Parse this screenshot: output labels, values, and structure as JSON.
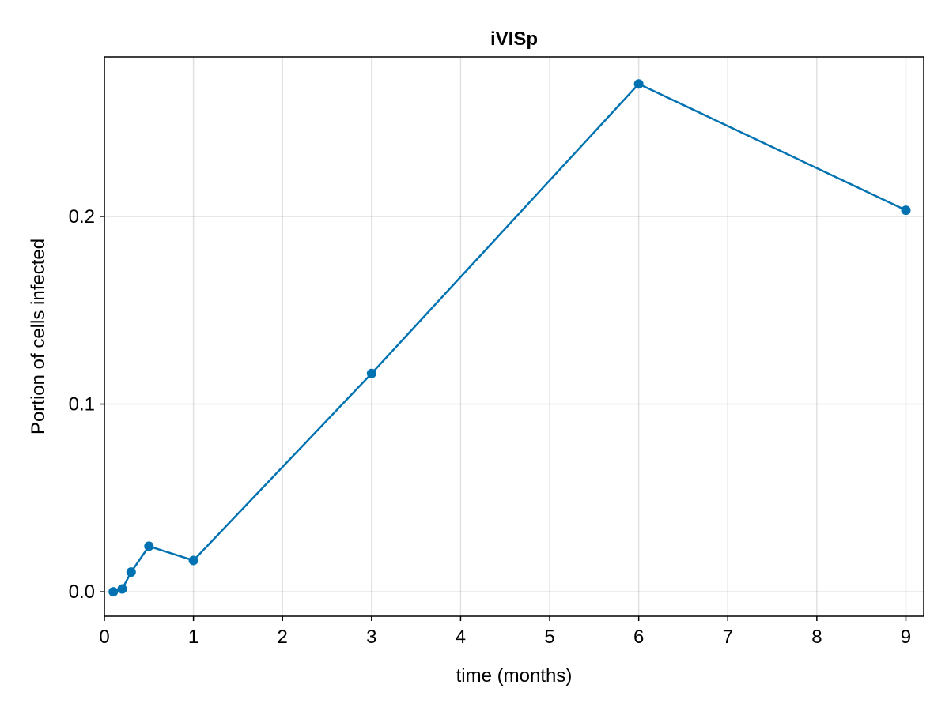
{
  "chart_data": {
    "type": "line",
    "title": "iVISp",
    "xlabel": "time (months)",
    "ylabel": "Portion of cells infected",
    "xlim": [
      0,
      9.2
    ],
    "ylim": [
      -0.013,
      0.285
    ],
    "xticks": [
      0,
      1,
      2,
      3,
      4,
      5,
      6,
      7,
      8,
      9
    ],
    "xtick_labels": [
      "0",
      "1",
      "2",
      "3",
      "4",
      "5",
      "6",
      "7",
      "8",
      "9"
    ],
    "yticks": [
      0.0,
      0.1,
      0.2
    ],
    "ytick_labels": [
      "0.0",
      "0.1",
      "0.2"
    ],
    "grid": true,
    "series": [
      {
        "color": "#0072b2",
        "x": [
          0.1,
          0.2,
          0.3,
          0.5,
          1,
          3,
          6,
          9
        ],
        "y": [
          0.0,
          0.0015,
          0.0105,
          0.0243,
          0.0167,
          0.1163,
          0.2706,
          0.2033
        ]
      }
    ]
  }
}
